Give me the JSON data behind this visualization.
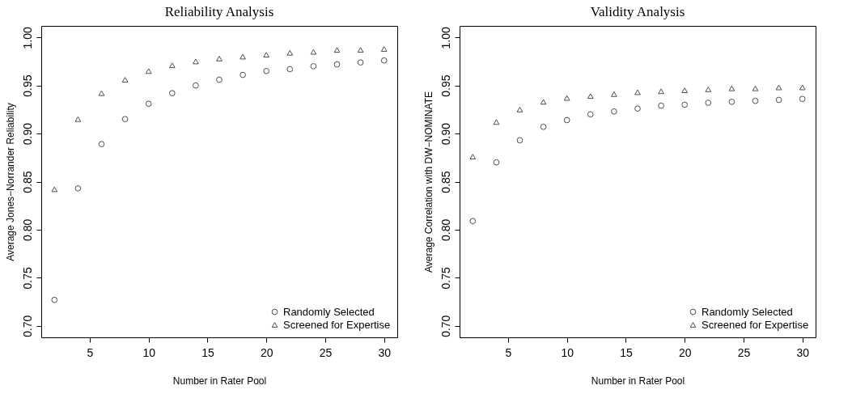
{
  "chart_data": [
    {
      "type": "scatter",
      "title": "Reliability Analysis",
      "xlabel": "Number in Rater Pool",
      "ylabel": "Average Jones−Norrander Reliability",
      "x": [
        2,
        4,
        6,
        8,
        10,
        12,
        14,
        16,
        18,
        20,
        22,
        24,
        26,
        28,
        30
      ],
      "series": [
        {
          "name": "Randomly Selected",
          "color": "#000000",
          "marker": "circle",
          "values": [
            0.727,
            0.843,
            0.889,
            0.915,
            0.931,
            0.942,
            0.95,
            0.956,
            0.961,
            0.965,
            0.967,
            0.97,
            0.972,
            0.974,
            0.976
          ]
        },
        {
          "name": "Screened for Expertise",
          "color": "#000000",
          "marker": "triangle",
          "values": [
            0.842,
            0.915,
            0.942,
            0.956,
            0.965,
            0.971,
            0.975,
            0.978,
            0.98,
            0.982,
            0.984,
            0.985,
            0.987,
            0.987,
            0.988
          ]
        }
      ],
      "xlim": [
        0.88,
        31.12
      ],
      "xticks": [
        5,
        10,
        15,
        20,
        25,
        30
      ],
      "ylim": [
        0.688,
        1.012
      ],
      "yticks": [
        {
          "value": 0.7,
          "label": "0.70"
        },
        0.75,
        {
          "value": 0.8,
          "label": "0.80"
        },
        0.85,
        {
          "value": 0.9,
          "label": "0.90"
        },
        0.95,
        {
          "value": 1,
          "label": "1.00"
        }
      ],
      "legend": "bottom right"
    },
    {
      "type": "scatter",
      "title": "Validity Analysis",
      "xlabel": "Number in Rater Pool",
      "ylabel": "Average Correlation with DW−NOMINATE",
      "x": [
        2,
        4,
        6,
        8,
        10,
        12,
        14,
        16,
        18,
        20,
        22,
        24,
        26,
        28,
        30
      ],
      "series": [
        {
          "name": "Randomly Selected",
          "color": "#000000",
          "marker": "circle",
          "values": [
            0.809,
            0.87,
            0.893,
            0.907,
            0.914,
            0.92,
            0.923,
            0.926,
            0.929,
            0.93,
            0.932,
            0.933,
            0.934,
            0.935,
            0.936
          ]
        },
        {
          "name": "Screened for Expertise",
          "color": "#000000",
          "marker": "triangle",
          "values": [
            0.876,
            0.912,
            0.925,
            0.933,
            0.937,
            0.939,
            0.941,
            0.943,
            0.944,
            0.945,
            0.946,
            0.947,
            0.947,
            0.948,
            0.948
          ]
        }
      ],
      "xlim": [
        0.88,
        31.12
      ],
      "xticks": [
        5,
        10,
        15,
        20,
        25,
        30
      ],
      "ylim": [
        0.688,
        1.012
      ],
      "yticks": [
        {
          "value": 0.7,
          "label": "0.70"
        },
        0.75,
        {
          "value": 0.8,
          "label": "0.80"
        },
        0.85,
        {
          "value": 0.9,
          "label": "0.90"
        },
        0.95,
        {
          "value": 1,
          "label": "1.00"
        }
      ],
      "legend": "bottom right"
    }
  ]
}
